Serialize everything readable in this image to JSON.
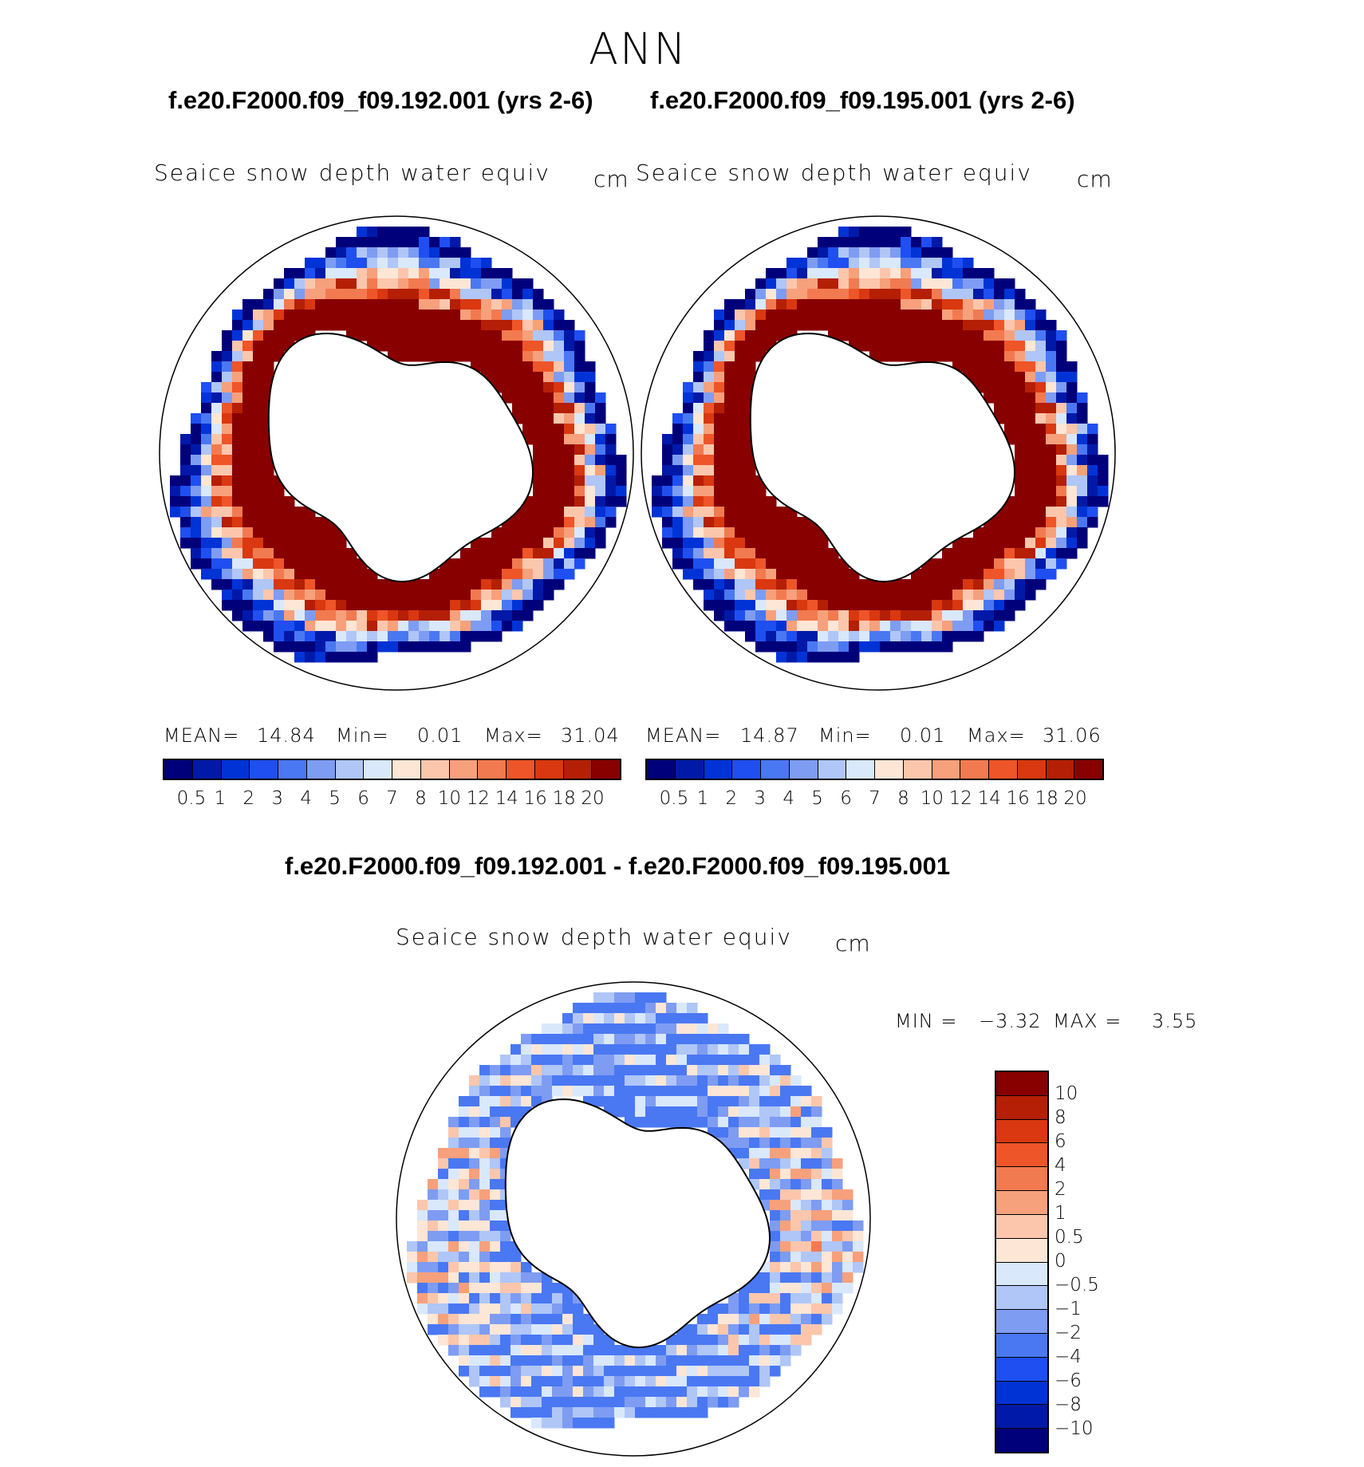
{
  "page": {
    "title": "ANN"
  },
  "panels": [
    {
      "case_title": "f.e20.F2000.f09_f09.192.001 (yrs 2-6)",
      "variable": "Seaice snow depth water equiv",
      "units": "cm",
      "mean_label": "MEAN=",
      "mean_value": "14.84",
      "min_label": "Min=",
      "min_value": "0.01",
      "max_label": "Max=",
      "max_value": "31.04"
    },
    {
      "case_title": "f.e20.F2000.f09_f09.195.001 (yrs 2-6)",
      "variable": "Seaice snow depth water equiv",
      "units": "cm",
      "mean_label": "MEAN=",
      "mean_value": "14.87",
      "min_label": "Min=",
      "min_value": "0.01",
      "max_label": "Max=",
      "max_value": "31.06"
    }
  ],
  "diff_panel": {
    "case_title": "f.e20.F2000.f09_f09.192.001 - f.e20.F2000.f09_f09.195.001",
    "variable": "Seaice snow depth water equiv",
    "units": "cm",
    "min_label": "MIN =",
    "min_value": "−3.32",
    "max_label": "MAX =",
    "max_value": "3.55"
  },
  "colors": {
    "abs_scale": [
      "#00007a",
      "#0019a8",
      "#0033d6",
      "#1f4ff0",
      "#4a78f2",
      "#7e9cf2",
      "#afc6f7",
      "#d9e8fb",
      "#fde6d6",
      "#fbc6ac",
      "#f7a07c",
      "#f27a50",
      "#ee5528",
      "#d93810",
      "#b41f06",
      "#880000"
    ],
    "diff_scale": [
      "#00007a",
      "#0019a8",
      "#0033d6",
      "#1f4ff0",
      "#4a78f2",
      "#7e9cf2",
      "#afc6f7",
      "#d9e8fb",
      "#fde6d6",
      "#fbc6ac",
      "#f7a07c",
      "#f27a50",
      "#ee5528",
      "#d93810",
      "#b41f06",
      "#880000"
    ]
  },
  "chart_data": [
    {
      "type": "heatmap",
      "map_projection": "south-polar-stereographic",
      "title": "Seaice snow depth water equiv",
      "units": "cm",
      "stats": {
        "mean": 14.84,
        "min": 0.01,
        "max": 31.04
      },
      "colorbar_ticks": [
        "0.5",
        "1",
        "2",
        "3",
        "4",
        "5",
        "6",
        "7",
        "8",
        "10",
        "12",
        "14",
        "16",
        "18",
        "20"
      ],
      "colorbar_orientation": "horizontal"
    },
    {
      "type": "heatmap",
      "map_projection": "south-polar-stereographic",
      "title": "Seaice snow depth water equiv",
      "units": "cm",
      "stats": {
        "mean": 14.87,
        "min": 0.01,
        "max": 31.06
      },
      "colorbar_ticks": [
        "0.5",
        "1",
        "2",
        "3",
        "4",
        "5",
        "6",
        "7",
        "8",
        "10",
        "12",
        "14",
        "16",
        "18",
        "20"
      ],
      "colorbar_orientation": "horizontal"
    },
    {
      "type": "heatmap",
      "map_projection": "south-polar-stereographic",
      "title": "Seaice snow depth water equiv",
      "units": "cm",
      "stats": {
        "min": -3.32,
        "max": 3.55
      },
      "colorbar_ticks": [
        "10",
        "8",
        "6",
        "4",
        "2",
        "1",
        "0.5",
        "0",
        "−0.5",
        "−1",
        "−2",
        "−4",
        "−6",
        "−8",
        "−10"
      ],
      "colorbar_orientation": "vertical"
    }
  ]
}
